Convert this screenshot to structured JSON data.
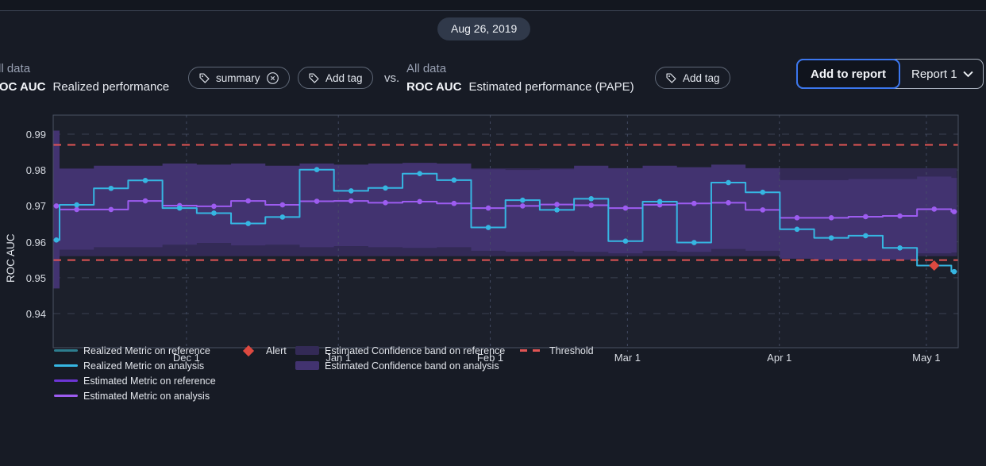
{
  "window": {
    "date_badge": "Aug 26, 2019"
  },
  "comparison": {
    "left": {
      "kicker": "All data",
      "metric": "ROC AUC",
      "title": "Realized performance",
      "tags": [
        {
          "label": "summary",
          "removable": true
        }
      ],
      "add_tag_label": "Add tag"
    },
    "versus_label": "vs.",
    "right": {
      "kicker": "All data",
      "metric": "ROC AUC",
      "title": "Estimated performance (PAPE)",
      "add_tag_label": "Add tag"
    }
  },
  "report_controls": {
    "add_button": "Add to report",
    "report_select": "Report 1"
  },
  "colors": {
    "background": "#171b25",
    "topbar": "#13171f",
    "divider": "#3e4656",
    "badge_bg": "#30394a",
    "plot_bg": "#1c202b",
    "plot_border": "#4a5262",
    "grid": "#3a4150",
    "grid_vertical": "#49516a",
    "band_reference": "#332a56",
    "band_analysis": "#423370",
    "realized_reference": "#2d7d8e",
    "realized_analysis": "#36b6e2",
    "estimated_reference": "#6c35d4",
    "estimated_analysis": "#9d5cf0",
    "alert": "#dd4940",
    "threshold": "#e15454",
    "accent_blue": "#3b76ee"
  },
  "chart_data": {
    "type": "line",
    "title": "",
    "xlabel": "",
    "ylabel": "ROC AUC",
    "grid": true,
    "legend_position": "bottom",
    "y_ticks": [
      "0.99",
      "0.98",
      "0.97",
      "0.96",
      "0.95",
      "0.94"
    ],
    "y_tick_values": [
      0.99,
      0.98,
      0.97,
      0.96,
      0.95,
      0.94
    ],
    "ylim": [
      0.9305,
      0.9953
    ],
    "x_tick_labels": [
      "Dec 1",
      "Jan 1",
      "Feb 1",
      "Mar 1",
      "Apr 1",
      "May 1"
    ],
    "x_tick_days": [
      0,
      31,
      62,
      90,
      121,
      151
    ],
    "x_domain_days": [
      -27.2,
      157.5
    ],
    "chunks": {
      "count": 28,
      "first_start_day": -25.9,
      "width_days": 7
    },
    "thresholds": {
      "upper": 0.987,
      "lower": 0.9549
    },
    "series": [
      {
        "name": "Estimated Confidence band on reference",
        "type": "band_full",
        "color": "#332a56",
        "top": 0.9805,
        "bottom": 0.956
      },
      {
        "name": "Estimated Confidence band on analysis",
        "type": "band",
        "color": "#423370",
        "top": [
          0.991,
          0.9803,
          0.9812,
          0.9812,
          0.9818,
          0.9815,
          0.9818,
          0.9812,
          0.9818,
          0.9815,
          0.9818,
          0.982,
          0.9818,
          0.9802,
          0.98,
          0.9802,
          0.9812,
          0.9805,
          0.9812,
          0.9808,
          0.9815,
          0.9805,
          0.9772,
          0.9772,
          0.9775,
          0.9775,
          0.9782,
          0.9778
        ],
        "bottom": [
          0.947,
          0.9578,
          0.9585,
          0.9585,
          0.9592,
          0.9597,
          0.959,
          0.9592,
          0.9585,
          0.9588,
          0.9585,
          0.9583,
          0.9585,
          0.9575,
          0.9572,
          0.9575,
          0.9572,
          0.9568,
          0.9575,
          0.9572,
          0.958,
          0.9575,
          0.9553,
          0.955,
          0.9548,
          0.955,
          0.9568,
          0.957
        ]
      },
      {
        "name": "Estimated Metric on analysis",
        "type": "step",
        "color": "#9d5cf0",
        "values": [
          0.97,
          0.969,
          0.969,
          0.9714,
          0.9701,
          0.9699,
          0.9714,
          0.9703,
          0.9713,
          0.9714,
          0.9709,
          0.9712,
          0.9707,
          0.9694,
          0.97,
          0.9704,
          0.9702,
          0.9694,
          0.9703,
          0.9707,
          0.9709,
          0.9689,
          0.9667,
          0.9667,
          0.967,
          0.9672,
          0.9691,
          0.9684
        ]
      },
      {
        "name": "Realized Metric on analysis",
        "type": "step",
        "color": "#36b6e2",
        "values": [
          0.9605,
          0.9703,
          0.9749,
          0.9771,
          0.9694,
          0.968,
          0.9651,
          0.9669,
          0.9801,
          0.9742,
          0.975,
          0.979,
          0.9772,
          0.964,
          0.9716,
          0.9689,
          0.972,
          0.9602,
          0.9712,
          0.9598,
          0.9765,
          0.9738,
          0.9635,
          0.9611,
          0.9617,
          0.9583,
          0.9534,
          0.9517
        ]
      }
    ],
    "alert": {
      "chunk_index": 26,
      "value": 0.9534
    },
    "legend": {
      "columns": [
        {
          "items": [
            {
              "label": "Realized Metric on reference",
              "marker": "line",
              "color": "#2d7d8e"
            },
            {
              "label": "Realized Metric on analysis",
              "marker": "line",
              "color": "#36b6e2"
            },
            {
              "label": "Estimated Metric on reference",
              "marker": "line",
              "color": "#6c35d4"
            },
            {
              "label": "Estimated Metric on analysis",
              "marker": "line",
              "color": "#9d5cf0"
            }
          ]
        },
        {
          "items": [
            {
              "label": "Alert",
              "marker": "diamond",
              "color": "#dd4940"
            }
          ]
        },
        {
          "items": [
            {
              "label": "Estimated Confidence band on reference",
              "marker": "band",
              "color": "#332a56"
            },
            {
              "label": "Estimated Confidence band on analysis",
              "marker": "band",
              "color": "#423370"
            }
          ]
        },
        {
          "items": [
            {
              "label": "Threshold",
              "marker": "dash",
              "color": "#e15454"
            }
          ]
        }
      ]
    }
  }
}
